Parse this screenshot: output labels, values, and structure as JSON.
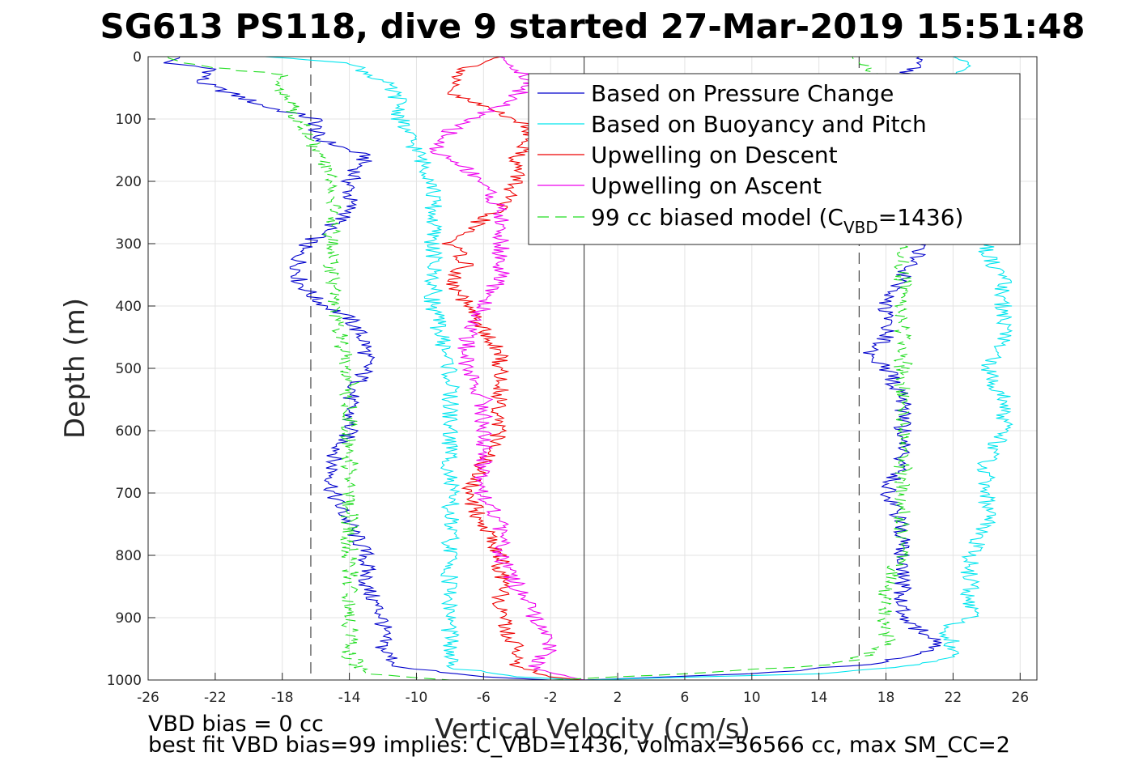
{
  "title": "SG613 PS118, dive 9 started 27-Mar-2019 15:51:48",
  "footer": {
    "line1": "VBD bias = 0 cc",
    "line2": "best fit VBD bias=99 implies: C_VBD=1436, volmax=56566 cc, max SM_CC=2"
  },
  "legend": {
    "placement": "top-right",
    "entries": [
      {
        "label": "Based on Pressure Change",
        "color": "#0000cc",
        "dash": "solid"
      },
      {
        "label": "Based on Buoyancy and Pitch",
        "color": "#00e5ee",
        "dash": "solid"
      },
      {
        "label": "Upwelling on Descent",
        "color": "#ee0000",
        "dash": "solid"
      },
      {
        "label": "Upwelling on Ascent",
        "color": "#ee00ee",
        "dash": "solid"
      },
      {
        "label_main": "99 cc biased model (C",
        "label_sub": "VBD",
        "label_tail": "=1436)",
        "color": "#22dd22",
        "dash": "dashed"
      }
    ]
  },
  "chart_data": {
    "type": "line",
    "xlabel": "Vertical Velocity (cm/s)",
    "ylabel": "Depth (m)",
    "xlim": [
      -26,
      27
    ],
    "ylim": [
      1000,
      0
    ],
    "xticks": [
      -26,
      -22,
      -18,
      -14,
      -10,
      -6,
      -2,
      2,
      6,
      10,
      14,
      18,
      22,
      26
    ],
    "yticks": [
      0,
      100,
      200,
      300,
      400,
      500,
      600,
      700,
      800,
      900,
      1000
    ],
    "grid": true,
    "reference_lines": {
      "zero_velocity": 0,
      "target_dashed": [
        -16.3,
        16.4
      ]
    },
    "series": [
      {
        "name": "Based on Pressure Change",
        "color": "#0000cc",
        "descent": [
          [
            0,
            -24
          ],
          [
            10,
            -25
          ],
          [
            20,
            -22
          ],
          [
            40,
            -23
          ],
          [
            60,
            -21
          ],
          [
            80,
            -19
          ],
          [
            100,
            -16
          ],
          [
            130,
            -16
          ],
          [
            160,
            -13
          ],
          [
            200,
            -14
          ],
          [
            250,
            -14
          ],
          [
            290,
            -16
          ],
          [
            310,
            -17
          ],
          [
            360,
            -17
          ],
          [
            390,
            -16
          ],
          [
            420,
            -14
          ],
          [
            460,
            -13
          ],
          [
            500,
            -13
          ],
          [
            550,
            -14
          ],
          [
            600,
            -14
          ],
          [
            650,
            -15
          ],
          [
            700,
            -15
          ],
          [
            750,
            -14
          ],
          [
            800,
            -13
          ],
          [
            850,
            -13
          ],
          [
            900,
            -12
          ],
          [
            950,
            -12
          ],
          [
            980,
            -11
          ],
          [
            995,
            -6
          ],
          [
            1000,
            -2
          ]
        ],
        "ascent": [
          [
            1000,
            0
          ],
          [
            990,
            10
          ],
          [
            975,
            17
          ],
          [
            960,
            20
          ],
          [
            940,
            21
          ],
          [
            920,
            20
          ],
          [
            900,
            19
          ],
          [
            850,
            19
          ],
          [
            800,
            19
          ],
          [
            750,
            19
          ],
          [
            700,
            18
          ],
          [
            650,
            19
          ],
          [
            600,
            19
          ],
          [
            550,
            19
          ],
          [
            500,
            18
          ],
          [
            480,
            17
          ],
          [
            450,
            18
          ],
          [
            400,
            18
          ],
          [
            350,
            19
          ],
          [
            320,
            20
          ],
          [
            300,
            20
          ],
          [
            200,
            20
          ],
          [
            100,
            20
          ],
          [
            60,
            19
          ],
          [
            30,
            19
          ],
          [
            10,
            20
          ],
          [
            0,
            20
          ]
        ]
      },
      {
        "name": "Based on Buoyancy and Pitch",
        "color": "#00e5ee",
        "descent": [
          [
            0,
            -19
          ],
          [
            10,
            -14
          ],
          [
            40,
            -12
          ],
          [
            70,
            -11
          ],
          [
            100,
            -11
          ],
          [
            150,
            -10
          ],
          [
            200,
            -9
          ],
          [
            250,
            -9
          ],
          [
            300,
            -9
          ],
          [
            400,
            -9
          ],
          [
            500,
            -8
          ],
          [
            600,
            -8
          ],
          [
            700,
            -8
          ],
          [
            800,
            -8
          ],
          [
            900,
            -8
          ],
          [
            980,
            -8
          ],
          [
            995,
            -4
          ],
          [
            1000,
            0
          ]
        ],
        "ascent": [
          [
            1000,
            0
          ],
          [
            990,
            14
          ],
          [
            975,
            20
          ],
          [
            960,
            22
          ],
          [
            940,
            22
          ],
          [
            920,
            21
          ],
          [
            900,
            23
          ],
          [
            850,
            23
          ],
          [
            800,
            23
          ],
          [
            750,
            24
          ],
          [
            700,
            24
          ],
          [
            650,
            24
          ],
          [
            600,
            25
          ],
          [
            550,
            25
          ],
          [
            500,
            24
          ],
          [
            450,
            25
          ],
          [
            400,
            25
          ],
          [
            350,
            25
          ],
          [
            320,
            24
          ],
          [
            300,
            24
          ],
          [
            250,
            24
          ],
          [
            150,
            23
          ],
          [
            60,
            22
          ],
          [
            30,
            22
          ],
          [
            10,
            23
          ],
          [
            0,
            22
          ]
        ]
      },
      {
        "name": "Upwelling on Descent",
        "color": "#ee0000",
        "values": [
          [
            0,
            -5
          ],
          [
            20,
            -7
          ],
          [
            40,
            -8
          ],
          [
            60,
            -8
          ],
          [
            80,
            -6
          ],
          [
            100,
            -4
          ],
          [
            130,
            -3
          ],
          [
            160,
            -4
          ],
          [
            200,
            -4
          ],
          [
            240,
            -5
          ],
          [
            280,
            -7
          ],
          [
            300,
            -8
          ],
          [
            330,
            -7
          ],
          [
            360,
            -8
          ],
          [
            400,
            -7
          ],
          [
            440,
            -6
          ],
          [
            480,
            -5
          ],
          [
            520,
            -5
          ],
          [
            560,
            -5
          ],
          [
            600,
            -5
          ],
          [
            650,
            -6
          ],
          [
            700,
            -7
          ],
          [
            750,
            -6
          ],
          [
            800,
            -5
          ],
          [
            850,
            -5
          ],
          [
            900,
            -5
          ],
          [
            950,
            -4
          ],
          [
            980,
            -4
          ],
          [
            995,
            -2
          ],
          [
            1000,
            0
          ]
        ]
      },
      {
        "name": "Upwelling on Ascent",
        "color": "#ee00ee",
        "values": [
          [
            0,
            -5
          ],
          [
            20,
            -4
          ],
          [
            40,
            -3
          ],
          [
            60,
            -4
          ],
          [
            80,
            -5
          ],
          [
            100,
            -7
          ],
          [
            120,
            -8
          ],
          [
            150,
            -9
          ],
          [
            180,
            -7
          ],
          [
            200,
            -6
          ],
          [
            250,
            -5
          ],
          [
            300,
            -5
          ],
          [
            350,
            -5
          ],
          [
            400,
            -6
          ],
          [
            450,
            -7
          ],
          [
            500,
            -7
          ],
          [
            550,
            -6
          ],
          [
            600,
            -6
          ],
          [
            650,
            -6
          ],
          [
            700,
            -6
          ],
          [
            750,
            -5
          ],
          [
            800,
            -5
          ],
          [
            850,
            -4
          ],
          [
            900,
            -3
          ],
          [
            950,
            -2
          ],
          [
            980,
            -3
          ],
          [
            995,
            -1
          ],
          [
            1000,
            0
          ]
        ]
      },
      {
        "name": "99 cc biased model",
        "color": "#22dd22",
        "dash": "dashed",
        "descent": [
          [
            0,
            -25
          ],
          [
            10,
            -24
          ],
          [
            30,
            -18
          ],
          [
            60,
            -18
          ],
          [
            100,
            -17
          ],
          [
            150,
            -16
          ],
          [
            200,
            -15
          ],
          [
            250,
            -15
          ],
          [
            300,
            -15
          ],
          [
            400,
            -15
          ],
          [
            500,
            -14
          ],
          [
            600,
            -14
          ],
          [
            700,
            -14
          ],
          [
            800,
            -14
          ],
          [
            900,
            -14
          ],
          [
            960,
            -14
          ],
          [
            990,
            -13
          ],
          [
            1000,
            -8
          ]
        ],
        "ascent": [
          [
            1000,
            -2
          ],
          [
            990,
            6
          ],
          [
            975,
            15
          ],
          [
            960,
            17
          ],
          [
            940,
            18
          ],
          [
            900,
            18
          ],
          [
            850,
            18
          ],
          [
            800,
            19
          ],
          [
            750,
            19
          ],
          [
            700,
            19
          ],
          [
            650,
            19
          ],
          [
            600,
            19
          ],
          [
            550,
            19
          ],
          [
            500,
            19
          ],
          [
            450,
            19
          ],
          [
            400,
            19
          ],
          [
            350,
            19
          ],
          [
            300,
            19
          ],
          [
            250,
            18
          ],
          [
            150,
            18
          ],
          [
            60,
            17
          ],
          [
            20,
            17
          ],
          [
            0,
            16
          ]
        ]
      }
    ]
  }
}
